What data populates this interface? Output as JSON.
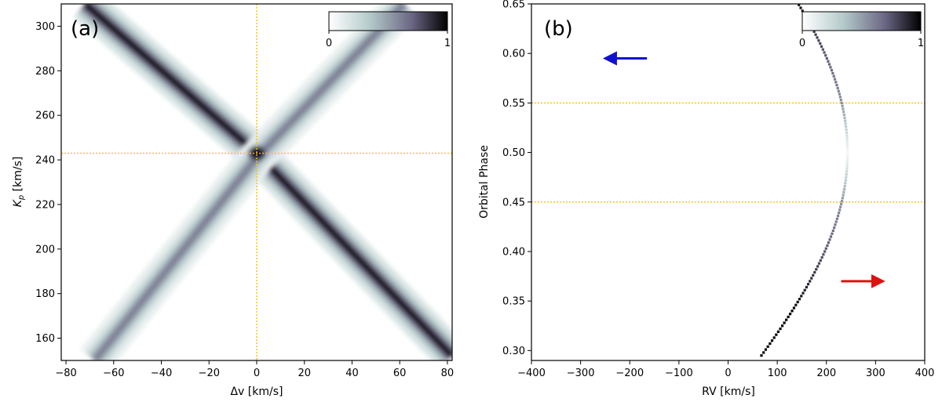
{
  "chart_data": [
    {
      "type": "heatmap",
      "panel_label": "(a)",
      "xlabel_main": "Δv",
      "xlabel_unit": " [km/s]",
      "ylabel_main": "K",
      "ylabel_sub": "p",
      "ylabel_unit": " [km/s]",
      "xlim": [
        -82,
        82
      ],
      "ylim": [
        150,
        310
      ],
      "xticks": [
        -80,
        -60,
        -40,
        -20,
        0,
        20,
        40,
        60,
        80
      ],
      "yticks": [
        160,
        180,
        200,
        220,
        240,
        260,
        280,
        300
      ],
      "xtick_labels": [
        "−80",
        "−60",
        "−40",
        "−20",
        "0",
        "20",
        "40",
        "60",
        "80"
      ],
      "ytick_labels": [
        "160",
        "180",
        "200",
        "220",
        "240",
        "260",
        "280",
        "300"
      ],
      "colormap": "bone_r",
      "colorbar": {
        "min_label": "0",
        "max_label": "1"
      },
      "crosshair": {
        "x": 0,
        "y": 243,
        "color": "#ffc000"
      },
      "features": [
        {
          "name": "main-band",
          "points": [
            [
              -72,
              310
            ],
            [
              0,
              243
            ],
            [
              82,
              152
            ]
          ],
          "peak_intensity": 0.95
        },
        {
          "name": "mirror-band",
          "points": [
            [
              -68,
              150
            ],
            [
              0,
              241
            ],
            [
              62,
              310
            ]
          ],
          "peak_intensity": 0.6
        },
        {
          "name": "peak",
          "x": 0,
          "y": 243,
          "intensity": 1.0
        }
      ]
    },
    {
      "type": "scatter",
      "panel_label": "(b)",
      "xlabel": "RV [km/s]",
      "ylabel": "Orbital Phase",
      "xlim": [
        -400,
        400
      ],
      "ylim": [
        0.29,
        0.65
      ],
      "xticks": [
        -400,
        -300,
        -200,
        -100,
        0,
        100,
        200,
        300,
        400
      ],
      "yticks": [
        0.3,
        0.35,
        0.4,
        0.45,
        0.5,
        0.55,
        0.6,
        0.65
      ],
      "xtick_labels": [
        "−400",
        "−300",
        "−200",
        "−100",
        "0",
        "100",
        "200",
        "300",
        "400"
      ],
      "ytick_labels": [
        "0.30",
        "0.35",
        "0.40",
        "0.45",
        "0.50",
        "0.55",
        "0.60",
        "0.65"
      ],
      "colormap": "bone_r",
      "colorbar": {
        "min_label": "0",
        "max_label": "1"
      },
      "hlines": [
        {
          "y": 0.55,
          "color": "#ffc000"
        },
        {
          "y": 0.45,
          "color": "#ffc000"
        }
      ],
      "curve": {
        "Kp": 243,
        "phase_start": 0.295,
        "phase_end": 0.655,
        "step": 0.003
      },
      "arrows": [
        {
          "name": "blue-arrow",
          "color": "#1010d0",
          "from": [
            -165,
            0.595
          ],
          "to": [
            -250,
            0.595
          ]
        },
        {
          "name": "red-arrow",
          "color": "#e01010",
          "from": [
            230,
            0.37
          ],
          "to": [
            315,
            0.37
          ]
        }
      ]
    }
  ]
}
